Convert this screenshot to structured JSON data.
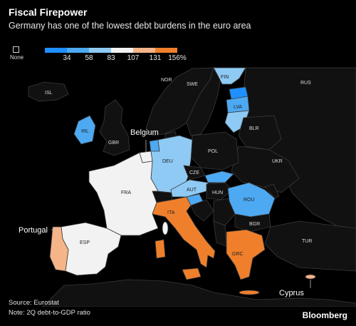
{
  "header": {
    "title": "Fiscal Firepower",
    "subtitle": "Germany has one of the lowest debt burdens in the euro area"
  },
  "legend": {
    "none_label": "None",
    "ticks": [
      "34",
      "58",
      "83",
      "107",
      "131",
      "156%"
    ],
    "colors": [
      "#1e90ff",
      "#4da9f2",
      "#8fcaf5",
      "#f2f2f2",
      "#f6b489",
      "#f07f2c"
    ]
  },
  "colors": {
    "none": "#111111",
    "land_border": "#3a3a3a",
    "sea": "#000000"
  },
  "countries": {
    "ISL": "ISL",
    "NOR": "NOR",
    "SWE": "SWE",
    "FIN": "FIN",
    "RUS": "RUS",
    "LVA": "LVA",
    "IRL": "IRL",
    "GBR": "GBR",
    "BLR": "BLR",
    "DEU": "DEU",
    "POL": "POL",
    "CZE": "CZE",
    "UKR": "UKR",
    "FRA": "FRA",
    "AUT": "AUT",
    "HUN": "HUN",
    "ROU": "ROU",
    "ITA": "ITA",
    "BGR": "BGR",
    "ESP": "ESP",
    "TUR": "TUR",
    "GRC": "GRC"
  },
  "callouts": {
    "belgium": "Belgium",
    "portugal": "Portugal",
    "cyprus": "Cyprus"
  },
  "footer": {
    "source": "Source: Eurostat",
    "note": "Note: 2Q debt-to-GDP ratio",
    "brand": "Bloomberg"
  }
}
